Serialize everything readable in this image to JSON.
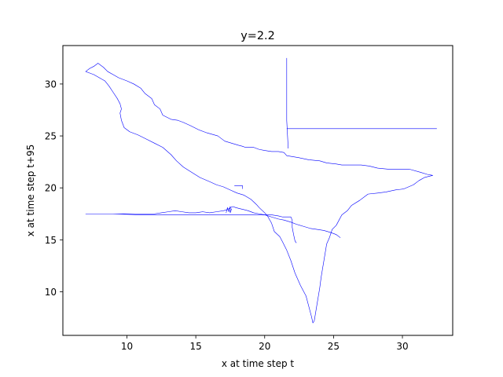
{
  "chart_data": {
    "type": "line",
    "title": "y=2.2",
    "xlabel": "x at time step t",
    "ylabel": "x at time step t+95",
    "xlim": [
      5.35,
      33.65
    ],
    "ylim": [
      5.8,
      33.7
    ],
    "xticks": [
      10,
      15,
      20,
      25,
      30
    ],
    "yticks": [
      10,
      15,
      20,
      25,
      30
    ],
    "x_tick_labels": [
      "10",
      "15",
      "20",
      "25",
      "30"
    ],
    "y_tick_labels": [
      "10",
      "15",
      "20",
      "25",
      "30"
    ],
    "grid": false,
    "legend": "none",
    "line_color": "#0000ff",
    "series": [
      {
        "x": [
          7.0,
          7.3,
          7.6,
          7.9,
          8.3,
          8.6,
          9.0,
          9.4,
          10.0,
          10.5,
          11.0,
          11.3,
          11.8,
          12.0,
          12.4,
          12.6,
          13.2,
          13.7,
          14.1,
          14.6,
          15.2,
          15.8,
          16.6,
          17.1,
          17.6,
          18.1,
          18.4,
          18.6,
          19.2,
          19.6,
          20.0,
          20.5,
          21.0,
          21.4,
          21.6,
          22.5,
          23.2,
          24.0,
          24.5,
          25.2,
          25.6,
          26.4,
          27.0,
          27.6,
          28.2,
          29.0,
          29.8,
          30.5,
          31.3,
          31.8,
          32.2,
          31.6,
          31.2,
          30.8,
          30.1,
          29.5,
          28.8,
          28.2,
          27.5,
          26.9,
          26.3,
          26.0,
          25.6,
          25.4,
          25.2,
          24.9,
          24.7,
          24.5,
          24.4,
          24.3,
          24.2,
          24.1,
          24.0,
          23.9,
          23.8,
          23.7,
          23.6,
          23.5,
          23.4,
          23.2,
          23.0,
          22.6,
          22.2,
          21.9,
          21.6,
          21.3,
          21.1,
          20.7,
          20.5,
          20.2,
          20.0,
          19.6,
          19.4,
          19.0,
          18.5,
          18.0,
          17.5,
          17.0,
          16.5,
          16.0,
          15.3,
          14.7,
          14.1,
          13.6,
          13.2,
          12.6,
          12.0,
          11.4,
          10.8,
          10.2,
          9.8,
          9.6,
          9.5,
          9.6,
          9.5,
          9.3,
          9.0,
          8.7,
          8.4,
          8.0,
          7.6,
          7.2,
          7.0
        ],
        "y": [
          31.2,
          31.5,
          31.7,
          32.0,
          31.6,
          31.2,
          30.9,
          30.6,
          30.3,
          30.0,
          29.6,
          29.1,
          28.6,
          28.0,
          27.6,
          27.0,
          26.6,
          26.5,
          26.3,
          26.0,
          25.6,
          25.3,
          25.0,
          24.5,
          24.3,
          24.1,
          24.0,
          23.9,
          23.9,
          23.7,
          23.6,
          23.5,
          23.5,
          23.4,
          23.1,
          22.9,
          22.7,
          22.6,
          22.4,
          22.3,
          22.2,
          22.2,
          22.2,
          22.1,
          21.9,
          21.8,
          21.8,
          21.8,
          21.5,
          21.3,
          21.2,
          21.0,
          20.7,
          20.3,
          19.9,
          19.8,
          19.6,
          19.5,
          19.4,
          18.8,
          18.3,
          17.8,
          17.4,
          16.9,
          16.4,
          16.0,
          15.2,
          14.6,
          13.8,
          13.0,
          12.2,
          11.4,
          10.4,
          9.6,
          8.8,
          8.0,
          7.2,
          7.0,
          7.6,
          8.6,
          9.6,
          10.6,
          11.8,
          13.0,
          14.0,
          14.8,
          15.3,
          15.8,
          16.6,
          17.3,
          17.6,
          18.1,
          18.4,
          18.9,
          19.3,
          19.5,
          19.8,
          20.1,
          20.3,
          20.6,
          21.0,
          21.5,
          22.0,
          22.6,
          23.2,
          23.9,
          24.3,
          24.7,
          25.1,
          25.4,
          25.8,
          26.5,
          27.2,
          27.6,
          28.1,
          28.6,
          29.2,
          29.8,
          30.3,
          30.6,
          30.9,
          31.1,
          31.2
        ]
      },
      {
        "x": [
          7.0,
          8.5,
          10.0,
          11.0,
          12.0,
          12.5,
          13.0,
          13.5,
          14.0,
          14.5,
          15.0,
          15.5,
          16.0,
          16.5,
          17.0,
          17.3,
          17.5,
          17.7,
          17.9,
          18.2,
          18.5,
          18.8,
          19.2,
          19.6,
          20.0,
          20.5,
          21.0,
          21.4,
          21.9,
          22.3,
          22.8,
          23.3,
          23.8,
          24.3,
          24.8,
          25.2,
          25.5
        ],
        "y": [
          17.5,
          17.5,
          17.5,
          17.5,
          17.5,
          17.6,
          17.7,
          17.8,
          17.7,
          17.6,
          17.6,
          17.7,
          17.6,
          17.7,
          17.8,
          17.9,
          18.1,
          18.2,
          18.1,
          18.0,
          17.9,
          17.8,
          17.6,
          17.5,
          17.4,
          17.2,
          17.0,
          16.9,
          16.7,
          16.5,
          16.3,
          16.1,
          16.0,
          15.9,
          15.7,
          15.5,
          15.2
        ]
      },
      {
        "x": [
          7.0,
          9.0,
          11.0,
          13.0,
          15.0,
          17.0,
          19.0,
          20.5,
          21.0,
          21.3,
          21.6,
          21.9,
          22.0,
          22.0,
          22.1,
          22.2,
          22.3
        ],
        "y": [
          17.5,
          17.5,
          17.4,
          17.4,
          17.4,
          17.4,
          17.4,
          17.4,
          17.3,
          17.2,
          17.2,
          17.2,
          16.9,
          16.2,
          15.5,
          14.9,
          14.7
        ]
      },
      {
        "x": [
          21.6,
          21.6,
          21.6,
          21.7,
          21.7
        ],
        "y": [
          32.5,
          29.0,
          26.5,
          24.0,
          23.8
        ]
      },
      {
        "x": [
          21.6,
          23.5,
          25.5,
          27.5,
          29.5,
          31.0,
          32.5
        ],
        "y": [
          25.7,
          25.7,
          25.7,
          25.7,
          25.7,
          25.7,
          25.7
        ]
      },
      {
        "x": [
          17.2,
          17.3,
          17.4,
          17.5,
          17.5,
          17.6
        ],
        "y": [
          17.6,
          18.1,
          17.7,
          18.2,
          17.6,
          18.0
        ]
      },
      {
        "x": [
          17.8,
          18.1,
          18.4,
          18.4
        ],
        "y": [
          20.2,
          20.2,
          20.2,
          19.9
        ]
      }
    ]
  }
}
